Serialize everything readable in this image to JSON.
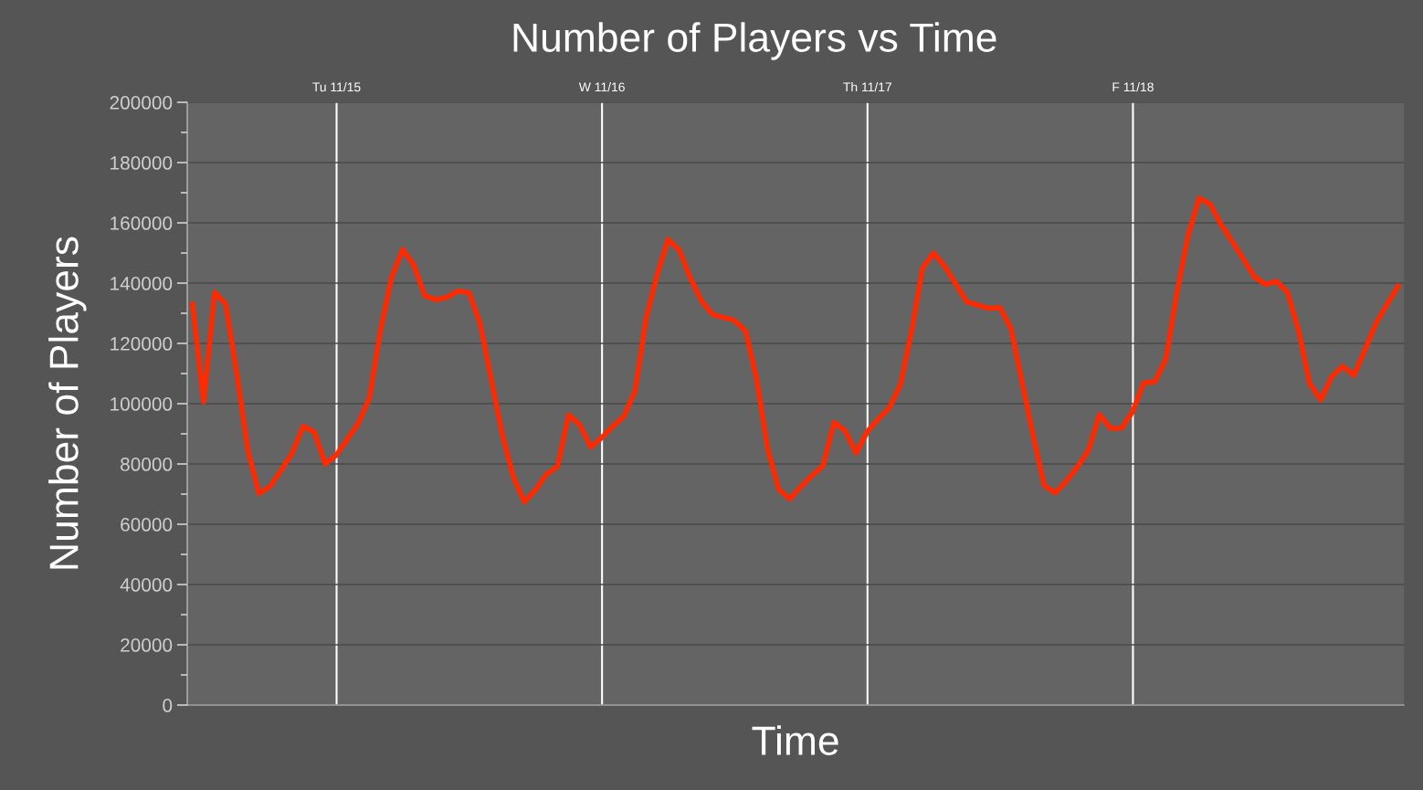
{
  "chart_data": {
    "type": "line",
    "title": "Number of Players vs Time",
    "xlabel": "Time",
    "ylabel": "Number of Players",
    "categories": [
      null,
      null,
      null,
      null,
      null,
      null,
      null,
      null,
      null,
      null,
      null,
      null,
      null,
      "Tu 11/15",
      null,
      null,
      null,
      null,
      null,
      null,
      null,
      null,
      null,
      null,
      null,
      null,
      null,
      null,
      null,
      null,
      null,
      null,
      null,
      null,
      null,
      null,
      null,
      "W 11/16",
      null,
      null,
      null,
      null,
      null,
      null,
      null,
      null,
      null,
      null,
      null,
      null,
      null,
      null,
      null,
      null,
      null,
      null,
      null,
      null,
      null,
      null,
      null,
      "Th 11/17",
      null,
      null,
      null,
      null,
      null,
      null,
      null,
      null,
      null,
      null,
      null,
      null,
      null,
      null,
      null,
      null,
      null,
      null,
      null,
      null,
      null,
      null,
      null,
      "F 11/18",
      null,
      null,
      null,
      null,
      null,
      null,
      null,
      null,
      null,
      null,
      null,
      null,
      null,
      null,
      null,
      null,
      null,
      null,
      null,
      null,
      null,
      null,
      null,
      null
    ],
    "ylim": [
      0,
      200000
    ],
    "yticks": [
      0,
      {
        "value": 10000,
        "label": null
      },
      20000,
      {
        "value": 30000,
        "label": null
      },
      40000,
      {
        "value": 50000,
        "label": null
      },
      60000,
      {
        "value": 70000,
        "label": null
      },
      80000,
      {
        "value": 90000,
        "label": null
      },
      100000,
      {
        "value": 110000,
        "label": null
      },
      120000,
      {
        "value": 130000,
        "label": null
      },
      140000,
      {
        "value": 150000,
        "label": null
      },
      160000,
      {
        "value": 170000,
        "label": null
      },
      180000,
      {
        "value": 190000,
        "label": null
      },
      200000
    ],
    "grid": true,
    "legend": false,
    "marker": "none",
    "line_style": "solid",
    "series": [
      {
        "color": "#ff2a00",
        "values": [
          133000,
          100600,
          137000,
          133000,
          110000,
          84600,
          70200,
          72500,
          77900,
          83600,
          92500,
          90600,
          80000,
          83000,
          88200,
          93600,
          102000,
          124500,
          142000,
          151200,
          146000,
          135800,
          134500,
          135300,
          137400,
          136800,
          126600,
          108200,
          89800,
          75700,
          67400,
          71400,
          76600,
          79200,
          96300,
          93000,
          85600,
          88800,
          92500,
          95800,
          104100,
          128100,
          142800,
          154500,
          151000,
          141700,
          134200,
          129600,
          128600,
          127600,
          124100,
          108200,
          84900,
          71600,
          68400,
          72500,
          76100,
          79400,
          93800,
          91000,
          83600,
          90800,
          94900,
          98700,
          106300,
          123900,
          145000,
          150000,
          145600,
          139700,
          133800,
          132700,
          131600,
          131900,
          124900,
          107100,
          89400,
          72800,
          70400,
          74300,
          79000,
          84500,
          96400,
          91800,
          91900,
          97500,
          106900,
          107300,
          114800,
          136800,
          155700,
          168200,
          166200,
          159300,
          153800,
          148000,
          142100,
          139600,
          140600,
          136900,
          124200,
          106700,
          101200,
          109000,
          112400,
          109400,
          117900,
          126700,
          133000,
          139000
        ]
      }
    ]
  }
}
